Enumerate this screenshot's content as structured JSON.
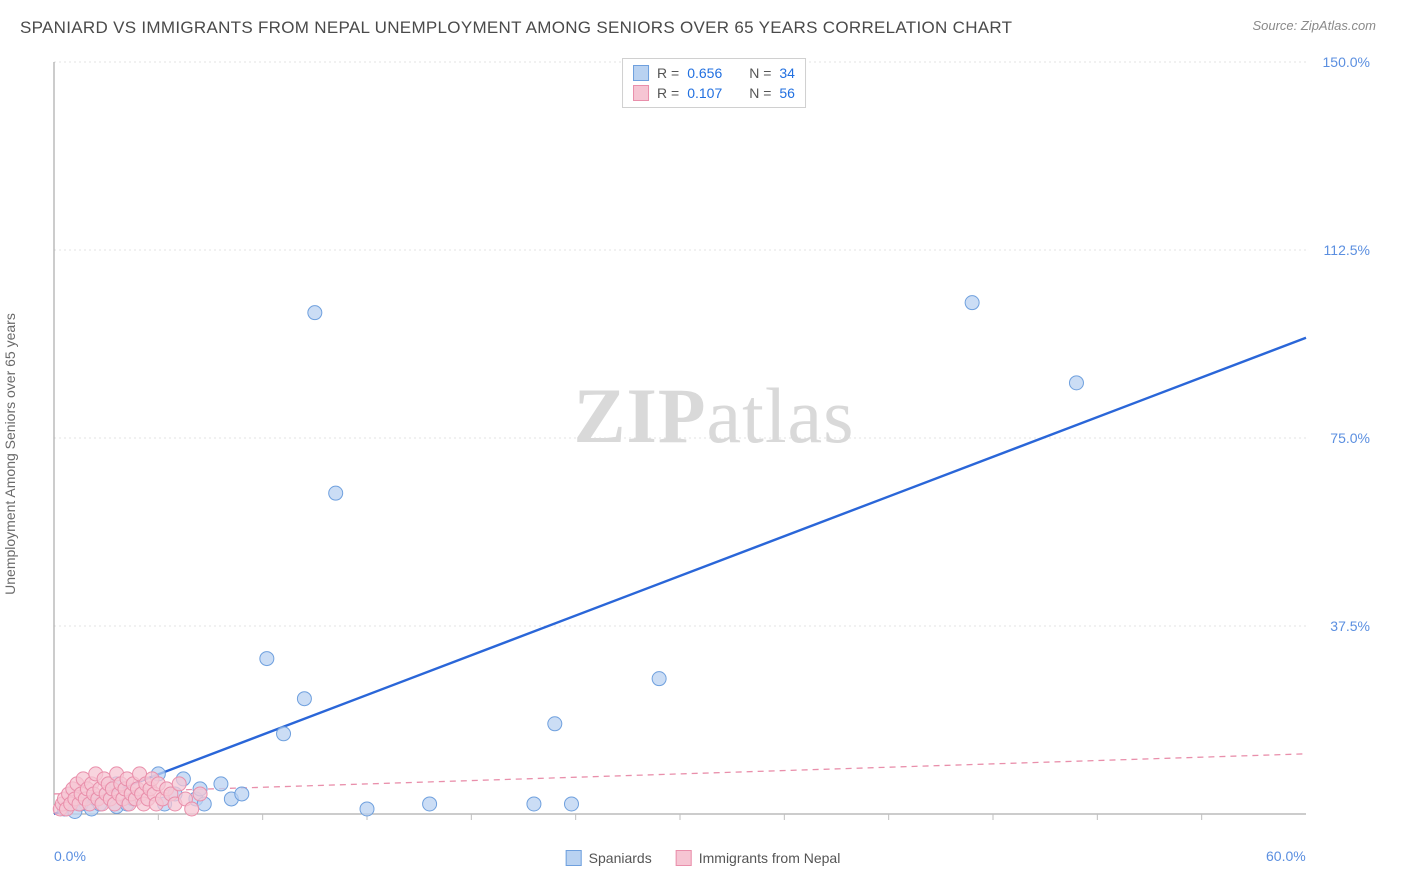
{
  "header": {
    "title": "SPANIARD VS IMMIGRANTS FROM NEPAL UNEMPLOYMENT AMONG SENIORS OVER 65 YEARS CORRELATION CHART",
    "source": "Source: ZipAtlas.com"
  },
  "y_axis_label": "Unemployment Among Seniors over 65 years",
  "watermark": {
    "bold": "ZIP",
    "rest": "atlas"
  },
  "chart": {
    "type": "scatter",
    "background_color": "#ffffff",
    "grid_color": "#e3e3e3",
    "axis_color": "#999999",
    "tick_color": "#bfbfbf",
    "xlim": [
      0,
      60
    ],
    "ylim": [
      0,
      150
    ],
    "y_ticks": [
      37.5,
      75.0,
      112.5,
      150.0
    ],
    "y_tick_labels": [
      "37.5%",
      "75.0%",
      "112.5%",
      "150.0%"
    ],
    "x_ticks": [
      0,
      60
    ],
    "x_tick_labels": [
      "0.0%",
      "60.0%"
    ],
    "x_minor_ticks": [
      5,
      10,
      15,
      20,
      25,
      30,
      35,
      40,
      45,
      50,
      55
    ],
    "marker_radius": 7,
    "marker_stroke_width": 1,
    "series": [
      {
        "id": "spaniards",
        "label": "Spaniards",
        "fill": "#b9d2f1",
        "stroke": "#6fa0de",
        "line_color": "#2a66d8",
        "line_width": 2.4,
        "line_dash": "none",
        "R": "0.656",
        "N": "34",
        "trend": {
          "x1": 0,
          "y1": 0,
          "x2": 60,
          "y2": 95
        },
        "points": [
          [
            0.5,
            1
          ],
          [
            1,
            0.5
          ],
          [
            1.3,
            2
          ],
          [
            1.8,
            1
          ],
          [
            2,
            3
          ],
          [
            2.2,
            2
          ],
          [
            2.5,
            4
          ],
          [
            3,
            1.5
          ],
          [
            3,
            6
          ],
          [
            3.5,
            2
          ],
          [
            3.8,
            3
          ],
          [
            5,
            8
          ],
          [
            5.3,
            2
          ],
          [
            5.8,
            4
          ],
          [
            6.2,
            7
          ],
          [
            6.8,
            3
          ],
          [
            7,
            5
          ],
          [
            7.2,
            2
          ],
          [
            8,
            6
          ],
          [
            8.5,
            3
          ],
          [
            9,
            4
          ],
          [
            11,
            16
          ],
          [
            10.2,
            31
          ],
          [
            12,
            23
          ],
          [
            12.5,
            100
          ],
          [
            13.5,
            64
          ],
          [
            15,
            1
          ],
          [
            18,
            2
          ],
          [
            23,
            2
          ],
          [
            24,
            18
          ],
          [
            24.8,
            2
          ],
          [
            29,
            27
          ],
          [
            44,
            102
          ],
          [
            49,
            86
          ]
        ]
      },
      {
        "id": "nepal",
        "label": "Immigrants from Nepal",
        "fill": "#f6c5d3",
        "stroke": "#e98fab",
        "line_color": "#e98fab",
        "line_width": 1.3,
        "line_dash": "6,5",
        "R": "0.107",
        "N": "56",
        "trend": {
          "x1": 0,
          "y1": 4,
          "x2": 60,
          "y2": 12
        },
        "points": [
          [
            0.3,
            1
          ],
          [
            0.4,
            2
          ],
          [
            0.5,
            3
          ],
          [
            0.6,
            1
          ],
          [
            0.7,
            4
          ],
          [
            0.8,
            2
          ],
          [
            0.9,
            5
          ],
          [
            1.0,
            3
          ],
          [
            1.1,
            6
          ],
          [
            1.2,
            2
          ],
          [
            1.3,
            4
          ],
          [
            1.4,
            7
          ],
          [
            1.5,
            3
          ],
          [
            1.6,
            5
          ],
          [
            1.7,
            2
          ],
          [
            1.8,
            6
          ],
          [
            1.9,
            4
          ],
          [
            2.0,
            8
          ],
          [
            2.1,
            3
          ],
          [
            2.2,
            5
          ],
          [
            2.3,
            2
          ],
          [
            2.4,
            7
          ],
          [
            2.5,
            4
          ],
          [
            2.6,
            6
          ],
          [
            2.7,
            3
          ],
          [
            2.8,
            5
          ],
          [
            2.9,
            2
          ],
          [
            3.0,
            8
          ],
          [
            3.1,
            4
          ],
          [
            3.2,
            6
          ],
          [
            3.3,
            3
          ],
          [
            3.4,
            5
          ],
          [
            3.5,
            7
          ],
          [
            3.6,
            2
          ],
          [
            3.7,
            4
          ],
          [
            3.8,
            6
          ],
          [
            3.9,
            3
          ],
          [
            4.0,
            5
          ],
          [
            4.1,
            8
          ],
          [
            4.2,
            4
          ],
          [
            4.3,
            2
          ],
          [
            4.4,
            6
          ],
          [
            4.5,
            3
          ],
          [
            4.6,
            5
          ],
          [
            4.7,
            7
          ],
          [
            4.8,
            4
          ],
          [
            4.9,
            2
          ],
          [
            5.0,
            6
          ],
          [
            5.2,
            3
          ],
          [
            5.4,
            5
          ],
          [
            5.6,
            4
          ],
          [
            5.8,
            2
          ],
          [
            6.0,
            6
          ],
          [
            6.3,
            3
          ],
          [
            6.6,
            1
          ],
          [
            7.0,
            4
          ]
        ]
      }
    ]
  },
  "legend_bottom": [
    {
      "label": "Spaniards",
      "fill": "#b9d2f1",
      "stroke": "#6fa0de"
    },
    {
      "label": "Immigrants from Nepal",
      "fill": "#f6c5d3",
      "stroke": "#e98fab"
    }
  ]
}
